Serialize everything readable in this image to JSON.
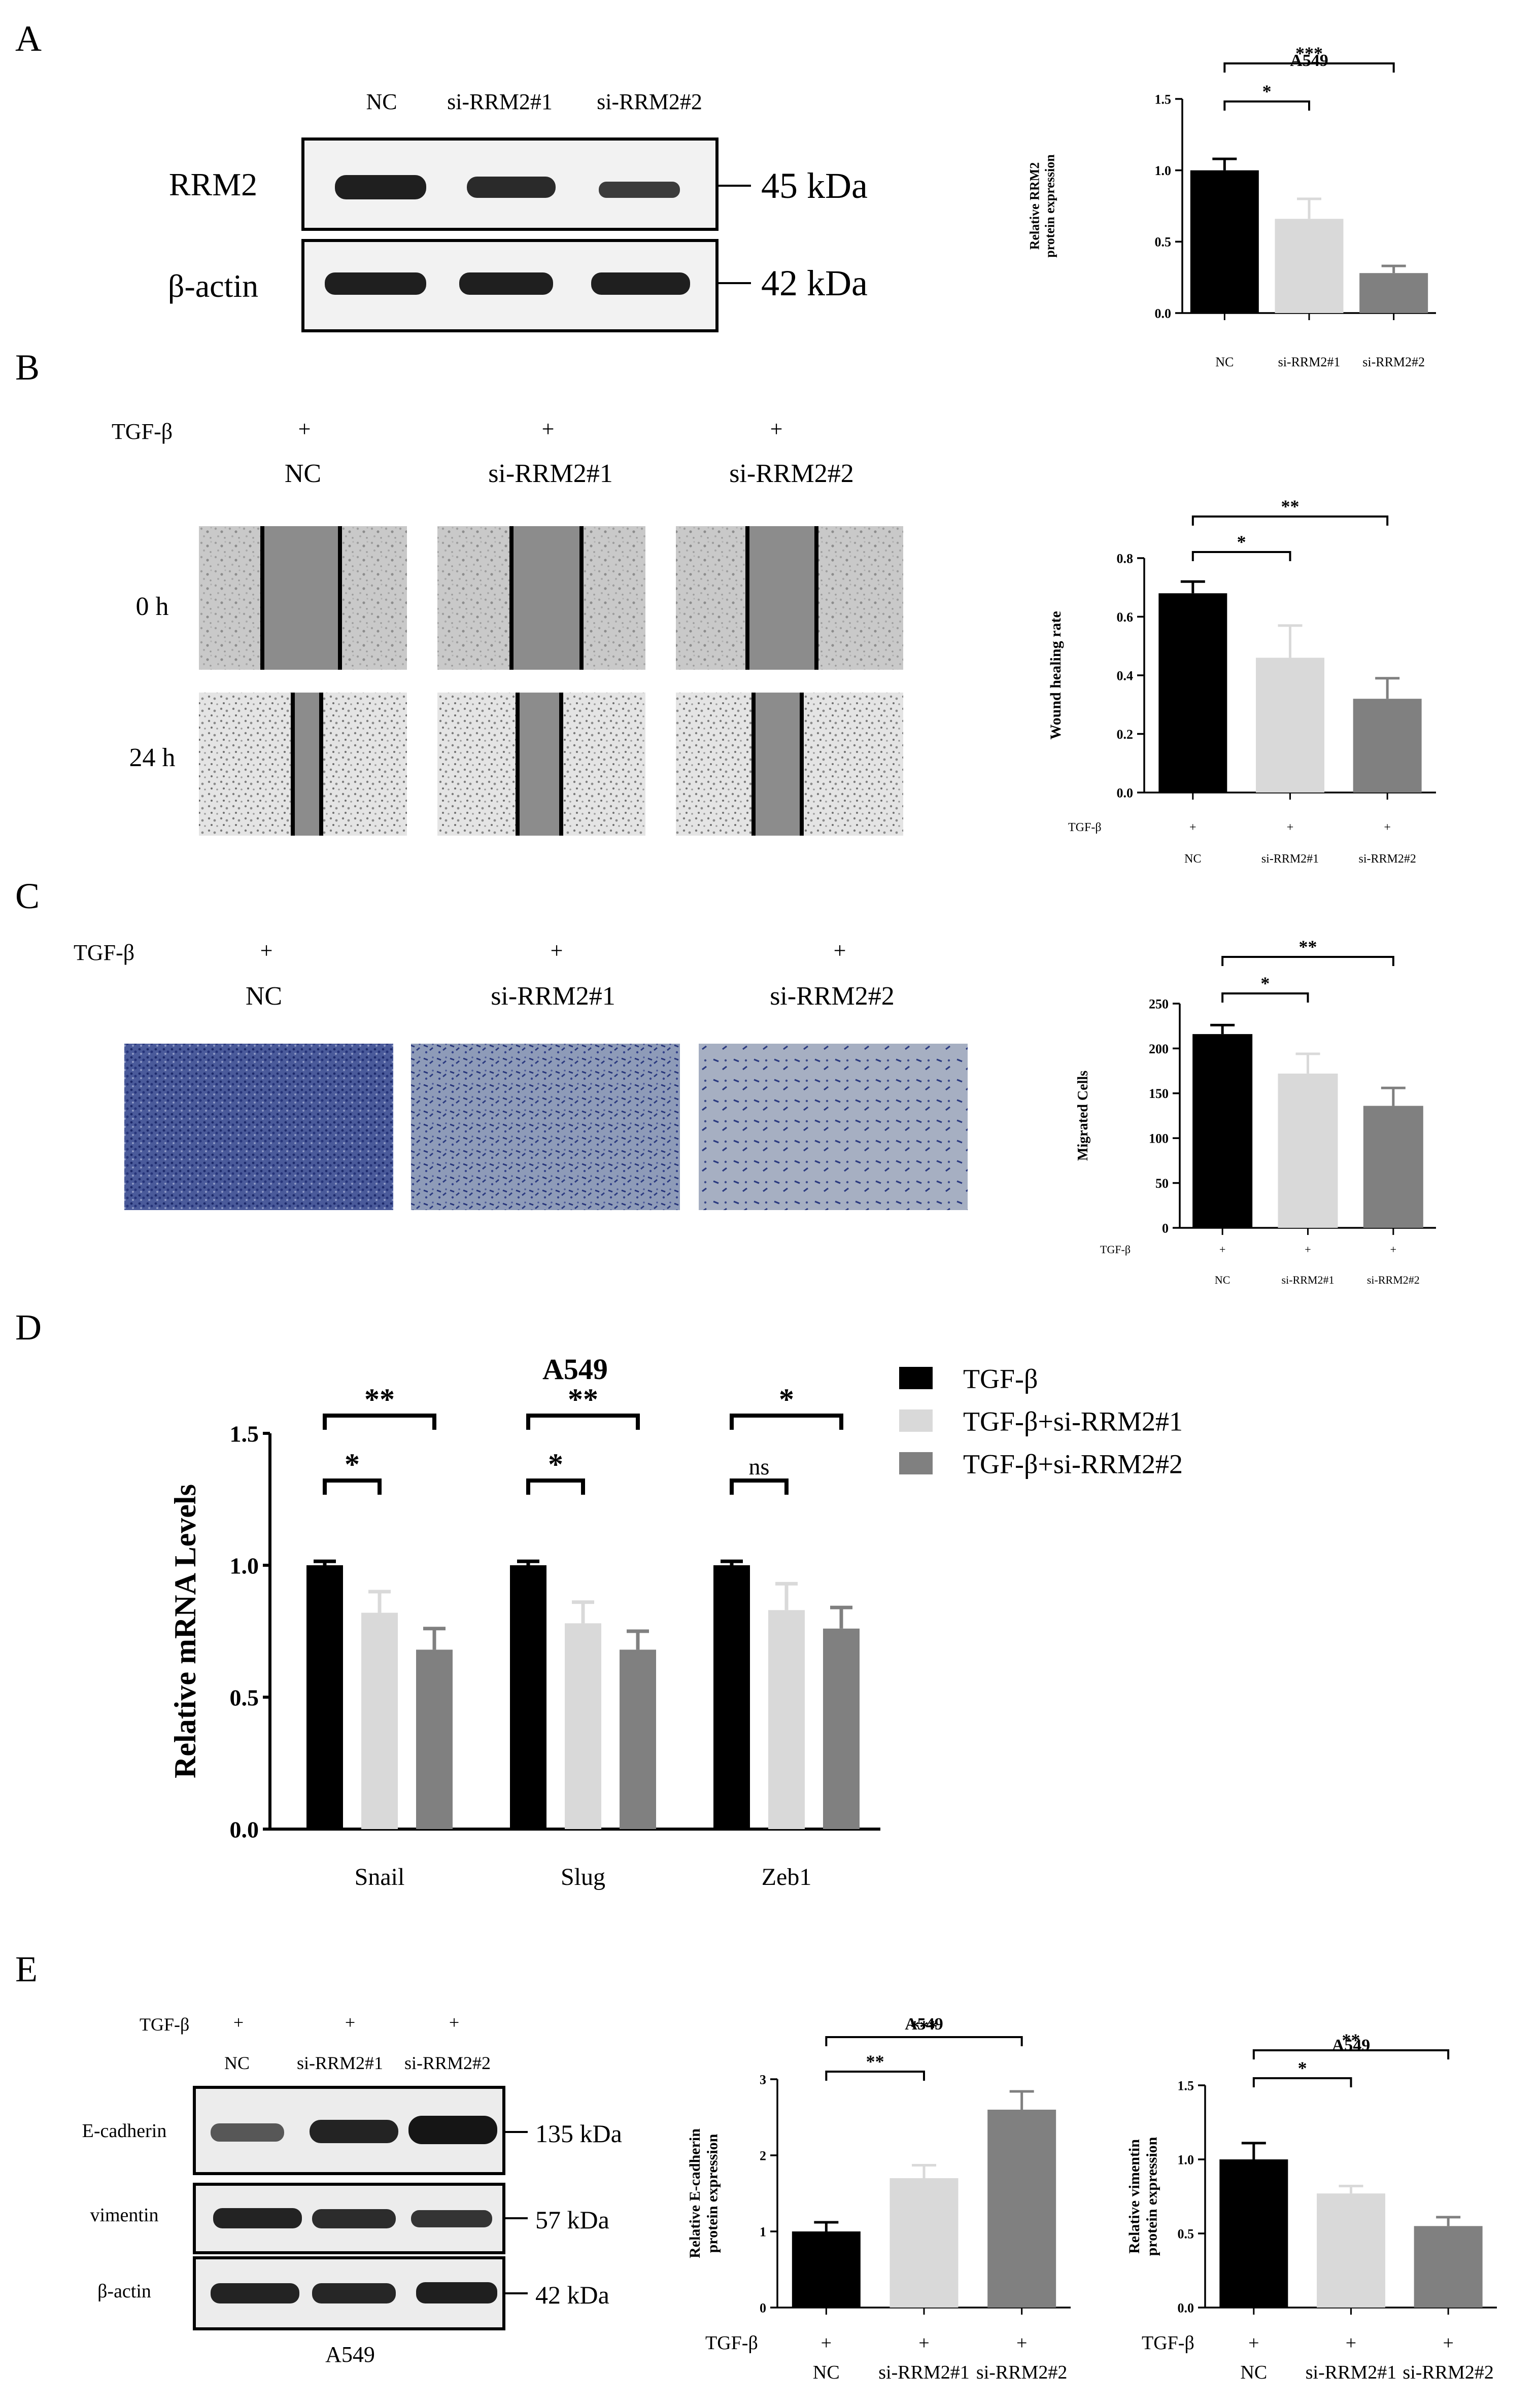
{
  "panels": {
    "A": {
      "letter": "A",
      "blot": {
        "lanes": [
          "NC",
          "si-RRM2#1",
          "si-RRM2#2"
        ],
        "rows": [
          {
            "label": "RRM2",
            "kda": "45 kDa"
          },
          {
            "label": "β-actin",
            "kda": "42 kDa"
          }
        ]
      }
    },
    "B": {
      "letter": "B",
      "treatment_label": "TGF-β",
      "plus": "+",
      "groups": [
        "NC",
        "si-RRM2#1",
        "si-RRM2#2"
      ],
      "times": [
        "0  h",
        "24 h"
      ]
    },
    "C": {
      "letter": "C",
      "treatment_label": "TGF-β",
      "plus": "+",
      "groups": [
        "NC",
        "si-RRM2#1",
        "si-RRM2#2"
      ]
    },
    "D": {
      "letter": "D"
    },
    "E": {
      "letter": "E",
      "treatment_label": "TGF-β",
      "plus": "+",
      "lanes": [
        "NC",
        "si-RRM2#1",
        "si-RRM2#2"
      ],
      "rows": [
        {
          "label": "E-cadherin",
          "kda": "135 kDa"
        },
        {
          "label": "vimentin",
          "kda": "57 kDa"
        },
        {
          "label": "β-actin",
          "kda": "42 kDa"
        }
      ],
      "cell_line": "A549"
    }
  },
  "chart_data": [
    {
      "id": "A_rrm2",
      "type": "bar",
      "title": "A549",
      "ylabel_lines": [
        "Relative RRM2",
        "protein expression"
      ],
      "categories": [
        "NC",
        "si-RRM2#1",
        "si-RRM2#2"
      ],
      "values": [
        1.0,
        0.66,
        0.28
      ],
      "errors": [
        0.08,
        0.14,
        0.05
      ],
      "colors": [
        "#000000",
        "#d9d9d9",
        "#808080"
      ],
      "ylim": [
        0,
        1.5
      ],
      "yticks": [
        "0.0",
        "0.5",
        "1.0",
        "1.5"
      ],
      "significance": [
        {
          "label": "*",
          "from": 0,
          "to": 1
        },
        {
          "label": "***",
          "from": 0,
          "to": 2
        }
      ]
    },
    {
      "id": "B_wound",
      "type": "bar",
      "title": "",
      "ylabel_lines": [
        "Wound healing rate"
      ],
      "treatment_label": "TGF-β",
      "treatment_marks": [
        "+",
        "+",
        "+"
      ],
      "categories": [
        "NC",
        "si-RRM2#1",
        "si-RRM2#2"
      ],
      "values": [
        0.68,
        0.46,
        0.32
      ],
      "errors": [
        0.04,
        0.11,
        0.07
      ],
      "colors": [
        "#000000",
        "#d9d9d9",
        "#808080"
      ],
      "ylim": [
        0,
        0.8
      ],
      "yticks": [
        "0.0",
        "0.2",
        "0.4",
        "0.6",
        "0.8"
      ],
      "significance": [
        {
          "label": "*",
          "from": 0,
          "to": 1
        },
        {
          "label": "**",
          "from": 0,
          "to": 2
        }
      ]
    },
    {
      "id": "C_migration",
      "type": "bar",
      "title": "",
      "ylabel_lines": [
        "Migrated Cells"
      ],
      "treatment_label": "TGF-β",
      "treatment_marks": [
        "+",
        "+",
        "+"
      ],
      "categories": [
        "NC",
        "si-RRM2#1",
        "si-RRM2#2"
      ],
      "values": [
        216,
        172,
        136
      ],
      "errors": [
        10,
        22,
        20
      ],
      "colors": [
        "#000000",
        "#d9d9d9",
        "#808080"
      ],
      "ylim": [
        0,
        250
      ],
      "yticks": [
        "0",
        "50",
        "100",
        "150",
        "200",
        "250"
      ],
      "significance": [
        {
          "label": "*",
          "from": 0,
          "to": 1
        },
        {
          "label": "**",
          "from": 0,
          "to": 2
        }
      ]
    },
    {
      "id": "D_mrna",
      "type": "bar",
      "title": "A549",
      "ylabel_lines": [
        "Relative mRNA Levels"
      ],
      "categories": [
        "Snail",
        "Slug",
        "Zeb1"
      ],
      "series": [
        {
          "name": "TGF-β",
          "color": "#000000",
          "values": [
            1.0,
            1.0,
            1.0
          ],
          "errors": [
            0.015,
            0.015,
            0.015
          ]
        },
        {
          "name": "TGF-β+si-RRM2#1",
          "color": "#d9d9d9",
          "values": [
            0.82,
            0.78,
            0.83
          ],
          "errors": [
            0.08,
            0.08,
            0.1
          ]
        },
        {
          "name": "TGF-β+si-RRM2#2",
          "color": "#808080",
          "values": [
            0.68,
            0.68,
            0.76
          ],
          "errors": [
            0.08,
            0.07,
            0.08
          ]
        }
      ],
      "ylim": [
        0,
        1.5
      ],
      "yticks": [
        "0.0",
        "0.5",
        "1.0",
        "1.5"
      ],
      "significance": [
        {
          "group": 0,
          "pairs": [
            {
              "label": "*",
              "from": 0,
              "to": 1
            },
            {
              "label": "**",
              "from": 0,
              "to": 2
            }
          ]
        },
        {
          "group": 1,
          "pairs": [
            {
              "label": "*",
              "from": 0,
              "to": 1
            },
            {
              "label": "**",
              "from": 0,
              "to": 2
            }
          ]
        },
        {
          "group": 2,
          "pairs": [
            {
              "label": "ns",
              "from": 0,
              "to": 1
            },
            {
              "label": "*",
              "from": 0,
              "to": 2
            }
          ]
        }
      ]
    },
    {
      "id": "E_ecad",
      "type": "bar",
      "title": "A549",
      "ylabel_lines": [
        "Relative E-cadherin",
        "protein expression"
      ],
      "treatment_label": "TGF-β",
      "treatment_marks": [
        "+",
        "+",
        "+"
      ],
      "categories": [
        "NC",
        "si-RRM2#1",
        "si-RRM2#2"
      ],
      "values": [
        1.0,
        1.7,
        2.6
      ],
      "errors": [
        0.12,
        0.17,
        0.24
      ],
      "colors": [
        "#000000",
        "#d9d9d9",
        "#808080"
      ],
      "ylim": [
        0,
        3
      ],
      "yticks": [
        "0",
        "1",
        "2",
        "3"
      ],
      "significance": [
        {
          "label": "**",
          "from": 0,
          "to": 1
        },
        {
          "label": "***",
          "from": 0,
          "to": 2
        }
      ]
    },
    {
      "id": "E_vim",
      "type": "bar",
      "title": "A549",
      "ylabel_lines": [
        "Relative vimentin",
        "protein expression"
      ],
      "treatment_label": "TGF-β",
      "treatment_marks": [
        "+",
        "+",
        "+"
      ],
      "categories": [
        "NC",
        "si-RRM2#1",
        "si-RRM2#2"
      ],
      "values": [
        1.0,
        0.77,
        0.55
      ],
      "errors": [
        0.11,
        0.05,
        0.06
      ],
      "colors": [
        "#000000",
        "#d9d9d9",
        "#808080"
      ],
      "ylim": [
        0,
        1.5
      ],
      "yticks": [
        "0.0",
        "0.5",
        "1.0",
        "1.5"
      ],
      "significance": [
        {
          "label": "*",
          "from": 0,
          "to": 1
        },
        {
          "label": "**",
          "from": 0,
          "to": 2
        }
      ]
    }
  ]
}
